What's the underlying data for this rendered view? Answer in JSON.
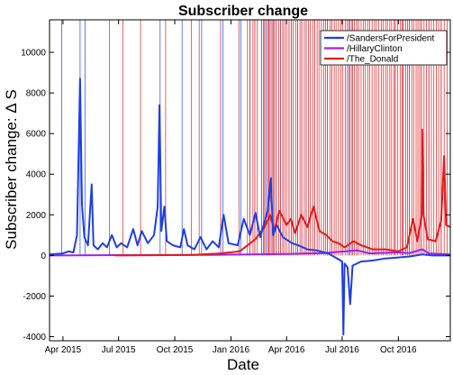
{
  "chart_data": {
    "type": "line",
    "title": "Subscriber change",
    "xlabel": "Date",
    "ylabel": "Subscriber change: Δ S",
    "xlim": [
      "2015-03-10",
      "2016-12-25"
    ],
    "ylim": [
      -4200,
      11600
    ],
    "y_ticks": [
      -4000,
      -2000,
      0,
      2000,
      4000,
      6000,
      8000,
      10000
    ],
    "x_ticks": [
      {
        "date": "2015-04-01",
        "label": "Apr 2015"
      },
      {
        "date": "2015-07-01",
        "label": "Jul 2015"
      },
      {
        "date": "2015-10-01",
        "label": "Oct 2015"
      },
      {
        "date": "2016-01-01",
        "label": "Jan 2016"
      },
      {
        "date": "2016-04-01",
        "label": "Apr 2016"
      },
      {
        "date": "2016-07-01",
        "label": "Jul 2016"
      },
      {
        "date": "2016-10-01",
        "label": "Oct 2016"
      }
    ],
    "grid": false,
    "legend_position": "top-right",
    "series": [
      {
        "name": "/SandersForPresident",
        "color": "#1f3fe0",
        "points": [
          [
            "2015-03-10",
            50
          ],
          [
            "2015-04-01",
            100
          ],
          [
            "2015-04-10",
            200
          ],
          [
            "2015-04-18",
            150
          ],
          [
            "2015-04-24",
            1000
          ],
          [
            "2015-04-29",
            8700
          ],
          [
            "2015-05-02",
            2500
          ],
          [
            "2015-05-06",
            900
          ],
          [
            "2015-05-12",
            500
          ],
          [
            "2015-05-18",
            3500
          ],
          [
            "2015-05-21",
            500
          ],
          [
            "2015-05-28",
            300
          ],
          [
            "2015-06-05",
            600
          ],
          [
            "2015-06-12",
            400
          ],
          [
            "2015-06-20",
            1000
          ],
          [
            "2015-06-28",
            400
          ],
          [
            "2015-07-05",
            600
          ],
          [
            "2015-07-15",
            400
          ],
          [
            "2015-07-25",
            1300
          ],
          [
            "2015-08-01",
            500
          ],
          [
            "2015-08-08",
            1200
          ],
          [
            "2015-08-18",
            600
          ],
          [
            "2015-08-28",
            1000
          ],
          [
            "2015-09-03",
            2400
          ],
          [
            "2015-09-06",
            7400
          ],
          [
            "2015-09-09",
            1200
          ],
          [
            "2015-09-14",
            2400
          ],
          [
            "2015-09-18",
            700
          ],
          [
            "2015-09-28",
            500
          ],
          [
            "2015-10-10",
            400
          ],
          [
            "2015-10-16",
            1300
          ],
          [
            "2015-10-22",
            500
          ],
          [
            "2015-11-02",
            300
          ],
          [
            "2015-11-12",
            900
          ],
          [
            "2015-11-22",
            300
          ],
          [
            "2015-12-02",
            700
          ],
          [
            "2015-12-12",
            400
          ],
          [
            "2015-12-20",
            2000
          ],
          [
            "2015-12-28",
            600
          ],
          [
            "2016-01-12",
            500
          ],
          [
            "2016-01-22",
            1800
          ],
          [
            "2016-02-01",
            1000
          ],
          [
            "2016-02-10",
            2100
          ],
          [
            "2016-02-18",
            900
          ],
          [
            "2016-03-01",
            2200
          ],
          [
            "2016-03-06",
            3800
          ],
          [
            "2016-03-10",
            1000
          ],
          [
            "2016-03-16",
            1500
          ],
          [
            "2016-03-26",
            900
          ],
          [
            "2016-04-10",
            600
          ],
          [
            "2016-04-20",
            500
          ],
          [
            "2016-05-05",
            300
          ],
          [
            "2016-05-20",
            250
          ],
          [
            "2016-06-08",
            100
          ],
          [
            "2016-06-20",
            -100
          ],
          [
            "2016-07-01",
            -300
          ],
          [
            "2016-07-03",
            -3900
          ],
          [
            "2016-07-05",
            -400
          ],
          [
            "2016-07-10",
            -600
          ],
          [
            "2016-07-14",
            -2400
          ],
          [
            "2016-07-18",
            -500
          ],
          [
            "2016-08-01",
            -300
          ],
          [
            "2016-08-20",
            -250
          ],
          [
            "2016-09-10",
            -150
          ],
          [
            "2016-10-01",
            -100
          ],
          [
            "2016-10-20",
            -50
          ],
          [
            "2016-11-10",
            50
          ],
          [
            "2016-11-25",
            0
          ],
          [
            "2016-12-25",
            0
          ]
        ]
      },
      {
        "name": "/HillaryClinton",
        "color": "#a020f0",
        "points": [
          [
            "2015-03-10",
            0
          ],
          [
            "2015-06-01",
            10
          ],
          [
            "2015-09-01",
            20
          ],
          [
            "2015-12-01",
            30
          ],
          [
            "2016-02-01",
            50
          ],
          [
            "2016-04-01",
            70
          ],
          [
            "2016-06-01",
            120
          ],
          [
            "2016-07-25",
            250
          ],
          [
            "2016-08-15",
            100
          ],
          [
            "2016-09-30",
            150
          ],
          [
            "2016-10-20",
            120
          ],
          [
            "2016-11-09",
            300
          ],
          [
            "2016-11-20",
            100
          ],
          [
            "2016-12-25",
            50
          ]
        ]
      },
      {
        "name": "/The_Donald",
        "color": "#e41a1c",
        "points": [
          [
            "2015-06-25",
            0
          ],
          [
            "2015-09-01",
            10
          ],
          [
            "2015-11-01",
            30
          ],
          [
            "2015-12-15",
            100
          ],
          [
            "2016-01-15",
            200
          ],
          [
            "2016-02-10",
            800
          ],
          [
            "2016-02-25",
            1400
          ],
          [
            "2016-03-05",
            2000
          ],
          [
            "2016-03-12",
            1200
          ],
          [
            "2016-03-20",
            2200
          ],
          [
            "2016-04-01",
            1500
          ],
          [
            "2016-04-08",
            1800
          ],
          [
            "2016-04-15",
            1100
          ],
          [
            "2016-04-25",
            2000
          ],
          [
            "2016-05-05",
            1400
          ],
          [
            "2016-05-15",
            2400
          ],
          [
            "2016-05-25",
            1200
          ],
          [
            "2016-06-05",
            1000
          ],
          [
            "2016-06-15",
            700
          ],
          [
            "2016-06-25",
            600
          ],
          [
            "2016-07-05",
            400
          ],
          [
            "2016-07-20",
            700
          ],
          [
            "2016-08-01",
            500
          ],
          [
            "2016-08-20",
            300
          ],
          [
            "2016-09-10",
            300
          ],
          [
            "2016-10-01",
            200
          ],
          [
            "2016-10-15",
            400
          ],
          [
            "2016-10-25",
            1800
          ],
          [
            "2016-11-01",
            700
          ],
          [
            "2016-11-08",
            1900
          ],
          [
            "2016-11-09",
            6200
          ],
          [
            "2016-11-11",
            2000
          ],
          [
            "2016-11-18",
            800
          ],
          [
            "2016-12-01",
            700
          ],
          [
            "2016-12-10",
            1700
          ],
          [
            "2016-12-15",
            4900
          ],
          [
            "2016-12-18",
            1500
          ],
          [
            "2016-12-25",
            1400
          ]
        ]
      }
    ],
    "event_lines": {
      "/SandersForPresident": [
        "2015-03-30",
        "2015-04-29",
        "2015-05-07",
        "2015-09-07",
        "2015-10-13",
        "2015-11-14",
        "2015-12-19",
        "2016-01-17",
        "2016-02-01",
        "2016-02-09",
        "2016-02-20",
        "2016-02-27",
        "2016-03-01",
        "2016-03-05",
        "2016-03-08",
        "2016-03-15",
        "2016-03-22",
        "2016-03-26",
        "2016-04-05",
        "2016-04-09",
        "2016-04-19",
        "2016-04-26",
        "2016-05-03",
        "2016-05-17",
        "2016-06-07",
        "2016-06-14",
        "2016-07-12",
        "2016-07-25",
        "2016-09-26",
        "2016-10-09",
        "2016-10-19",
        "2016-11-08",
        "2016-11-20",
        "2016-12-10"
      ],
      "/The_Donald": [
        "2015-06-16",
        "2015-07-08",
        "2015-08-06",
        "2015-09-16",
        "2015-10-28",
        "2015-11-10",
        "2015-12-15",
        "2016-01-14",
        "2016-01-28",
        "2016-02-01",
        "2016-02-06",
        "2016-02-09",
        "2016-02-13",
        "2016-02-20",
        "2016-02-23",
        "2016-02-25",
        "2016-03-01",
        "2016-03-03",
        "2016-03-05",
        "2016-03-08",
        "2016-03-10",
        "2016-03-12",
        "2016-03-15",
        "2016-03-19",
        "2016-03-22",
        "2016-03-26",
        "2016-03-29",
        "2016-04-01",
        "2016-04-05",
        "2016-04-09",
        "2016-04-12",
        "2016-04-16",
        "2016-04-19",
        "2016-04-23",
        "2016-04-26",
        "2016-04-30",
        "2016-05-03",
        "2016-05-07",
        "2016-05-10",
        "2016-05-14",
        "2016-05-17",
        "2016-05-21",
        "2016-05-24",
        "2016-05-28",
        "2016-06-01",
        "2016-06-04",
        "2016-06-07",
        "2016-06-11",
        "2016-06-14",
        "2016-06-18",
        "2016-06-21",
        "2016-06-25",
        "2016-06-29",
        "2016-07-02",
        "2016-07-06",
        "2016-07-09",
        "2016-07-13",
        "2016-07-16",
        "2016-07-18",
        "2016-07-21",
        "2016-07-25",
        "2016-07-28",
        "2016-08-01",
        "2016-08-05",
        "2016-08-08",
        "2016-08-12",
        "2016-08-15",
        "2016-08-19",
        "2016-08-23",
        "2016-08-26",
        "2016-08-30",
        "2016-09-03",
        "2016-09-06",
        "2016-09-10",
        "2016-09-13",
        "2016-09-17",
        "2016-09-20",
        "2016-09-24",
        "2016-09-26",
        "2016-09-30",
        "2016-10-04",
        "2016-10-07",
        "2016-10-09",
        "2016-10-13",
        "2016-10-16",
        "2016-10-19",
        "2016-10-23",
        "2016-10-26",
        "2016-10-30",
        "2016-11-02",
        "2016-11-05",
        "2016-11-08",
        "2016-11-12",
        "2016-11-16",
        "2016-11-20",
        "2016-11-24",
        "2016-11-28",
        "2016-12-02",
        "2016-12-06",
        "2016-12-10",
        "2016-12-15",
        "2016-12-20"
      ]
    }
  }
}
